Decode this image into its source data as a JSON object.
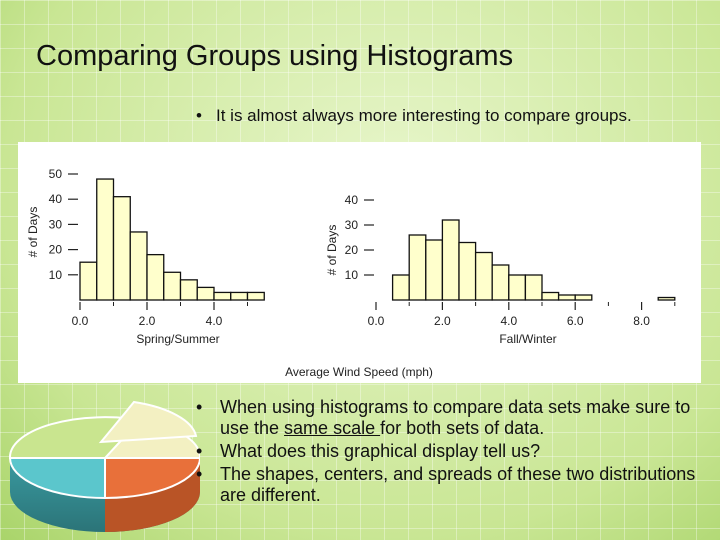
{
  "slide": {
    "title": "Comparing Groups using Histograms",
    "intro_bullet": "It is almost always more interesting to compare groups.",
    "bullets": [
      {
        "before": "When using histograms to compare data sets make sure to use the ",
        "underlined": "same scale ",
        "after": "for both sets of data."
      },
      {
        "text": "What does this graphical display tell us?"
      },
      {
        "text": "The shapes, centers, and spreads of these two distributions are different."
      }
    ],
    "bullet_glyph": "•"
  },
  "chart_data": [
    {
      "type": "bar",
      "title": "",
      "xlabel": "Spring/Summer",
      "ylabel": "# of Days",
      "bin_width": 0.5,
      "bin_starts": [
        0.0,
        0.5,
        1.0,
        1.5,
        2.0,
        2.5,
        3.0,
        3.5,
        4.0,
        4.5,
        5.0
      ],
      "values": [
        15,
        48,
        41,
        27,
        18,
        11,
        8,
        5,
        3,
        3,
        3
      ],
      "xlim": [
        0,
        6.0
      ],
      "ylim": [
        0,
        50
      ],
      "xticks": [
        "0.0",
        "2.0",
        "4.0"
      ],
      "xtick_values": [
        0,
        2,
        4
      ],
      "yticks": [
        "10",
        "20",
        "30",
        "40",
        "50"
      ],
      "ytick_values": [
        10,
        20,
        30,
        40,
        50
      ]
    },
    {
      "type": "bar",
      "title": "",
      "xlabel": "Fall/Winter",
      "ylabel": "# of Days",
      "bin_width": 0.5,
      "bin_starts": [
        0.5,
        1.0,
        1.5,
        2.0,
        2.5,
        3.0,
        3.5,
        4.0,
        4.5,
        5.0,
        5.5,
        6.0,
        8.5
      ],
      "values": [
        10,
        26,
        24,
        32,
        23,
        19,
        14,
        10,
        10,
        3,
        2,
        2,
        1
      ],
      "xlim": [
        0,
        9.3
      ],
      "ylim": [
        0,
        40
      ],
      "xticks": [
        "0.0",
        "2.0",
        "4.0",
        "6.0",
        "8.0"
      ],
      "xtick_values": [
        0,
        2,
        4,
        6,
        8
      ],
      "yticks": [
        "10",
        "20",
        "30",
        "40"
      ],
      "ytick_values": [
        10,
        20,
        30,
        40
      ]
    }
  ],
  "shared_xlabel": "Average Wind Speed (mph)",
  "colors": {
    "bar_fill": "#ffffcc",
    "bar_stroke": "#111111",
    "pie_teal": "#5bc6cc",
    "pie_orange": "#e8703a",
    "pie_cream": "#f3f0c2",
    "pie_green": "#c9e58f"
  }
}
